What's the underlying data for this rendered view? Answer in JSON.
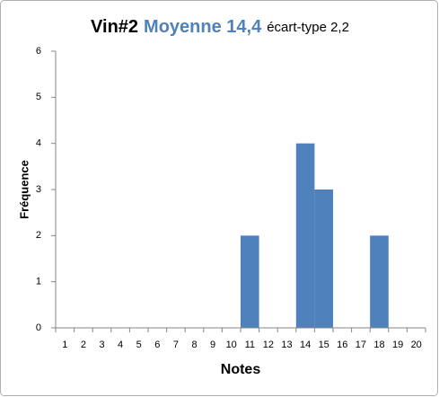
{
  "chart_data": {
    "type": "bar",
    "title_parts": [
      "Vin#2",
      "Moyenne 14,4",
      "écart-type 2,2"
    ],
    "x_label": "Notes",
    "y_label": "Fréquence",
    "categories": [
      1,
      2,
      3,
      4,
      5,
      6,
      7,
      8,
      9,
      10,
      11,
      12,
      13,
      14,
      15,
      16,
      17,
      18,
      19,
      20
    ],
    "values": [
      0,
      0,
      0,
      0,
      0,
      0,
      0,
      0,
      0,
      0,
      2,
      0,
      0,
      4,
      3,
      0,
      0,
      2,
      0,
      0
    ],
    "color": "#4f81bd",
    "ylim": [
      0,
      6
    ],
    "yticks": [
      0,
      1,
      2,
      3,
      4,
      5,
      6
    ],
    "grid": false
  }
}
